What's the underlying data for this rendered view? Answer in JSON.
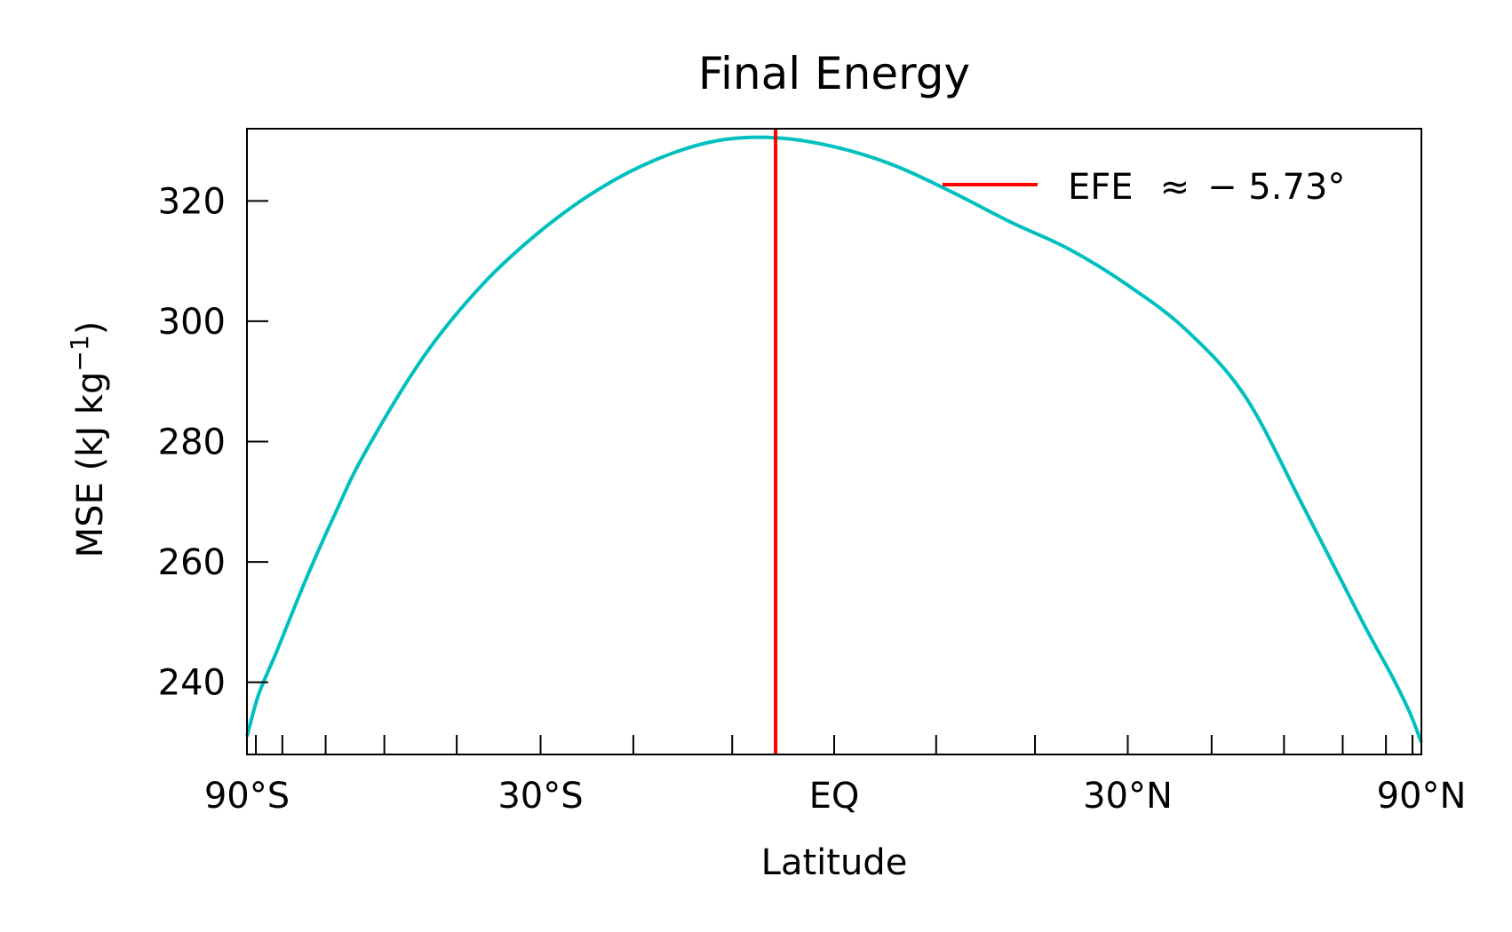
{
  "chart_data": {
    "type": "line",
    "title": "Final Energy",
    "xlabel": "Latitude",
    "ylabel_main": "MSE (kJ kg",
    "ylabel_sup": "−1",
    "ylabel_close": ")",
    "xlim": [
      -1,
      1
    ],
    "ylim": [
      228,
      332
    ],
    "x_scale": "sine of latitude",
    "yticks": [
      240,
      260,
      280,
      300,
      320
    ],
    "ytick_labels": [
      "240",
      "260",
      "280",
      "300",
      "320"
    ],
    "xticks_major_deg": [
      -90,
      -30,
      0,
      30,
      90
    ],
    "xtick_labels": [
      "90°S",
      "30°S",
      "EQ",
      "30°N",
      "90°N"
    ],
    "xticks_minor_deg": [
      -80,
      -70,
      -60,
      -50,
      -40,
      -20,
      -10,
      10,
      20,
      40,
      50,
      60,
      70,
      80
    ],
    "grid": false,
    "legend_position": "upper-right",
    "colors": {
      "curve": "#00bfbf",
      "efe": "#ff0000",
      "axes": "#000000"
    },
    "series": [
      {
        "name": "",
        "x_sin_lat": [
          -1.0,
          -0.98,
          -0.95,
          -0.9,
          -0.85,
          -0.8,
          -0.7,
          -0.6,
          -0.5,
          -0.4,
          -0.3,
          -0.2,
          -0.1,
          0.0,
          0.1,
          0.2,
          0.3,
          0.4,
          0.5,
          0.6,
          0.7,
          0.8,
          0.9,
          0.95,
          0.98,
          1.0
        ],
        "y": [
          231,
          238,
          245,
          257,
          268,
          278,
          294,
          306,
          315,
          322,
          327,
          330,
          330.5,
          329,
          326,
          321.5,
          316.5,
          312,
          306,
          298.5,
          287.5,
          269,
          250,
          241,
          235,
          230
        ]
      }
    ],
    "efe": {
      "label": "EFE",
      "approx": "≈",
      "value_text": "− 5.73°",
      "lat_deg": -5.73
    }
  }
}
